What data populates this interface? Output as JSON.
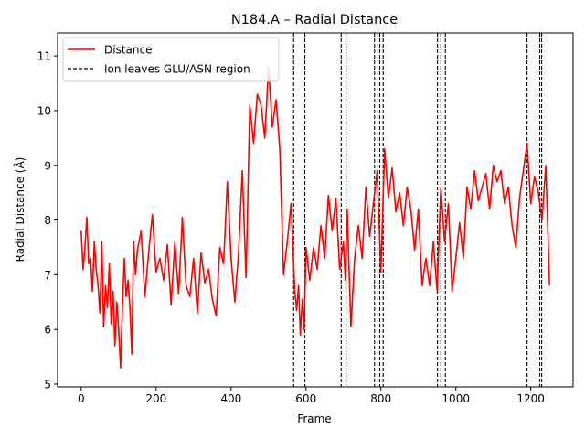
{
  "chart_data": {
    "type": "line",
    "title": "N184.A – Radial Distance",
    "xlabel": "Frame",
    "ylabel": "Radial Distance (Å)",
    "xlim": [
      -63,
      1313
    ],
    "ylim": [
      4.95,
      11.42
    ],
    "xticks": [
      0,
      200,
      400,
      600,
      800,
      1000,
      1200
    ],
    "xtick_labels": [
      "0",
      "200",
      "400",
      "600",
      "800",
      "1000",
      "1200"
    ],
    "yticks": [
      5,
      6,
      7,
      8,
      9,
      10,
      11
    ],
    "ytick_labels": [
      "5",
      "6",
      "7",
      "8",
      "9",
      "10",
      "11"
    ],
    "legend_position": "top-left",
    "grid": false,
    "series": [
      {
        "name": "Distance",
        "color": "#ff0000",
        "style": "solid",
        "x": [
          0,
          5,
          10,
          15,
          20,
          25,
          30,
          35,
          40,
          45,
          50,
          55,
          60,
          65,
          70,
          75,
          80,
          85,
          90,
          95,
          100,
          105,
          110,
          115,
          120,
          125,
          130,
          135,
          140,
          145,
          150,
          160,
          170,
          180,
          190,
          200,
          210,
          220,
          230,
          240,
          250,
          260,
          270,
          280,
          290,
          300,
          310,
          320,
          330,
          340,
          350,
          360,
          370,
          380,
          390,
          400,
          410,
          420,
          430,
          440,
          450,
          460,
          470,
          480,
          490,
          500,
          510,
          520,
          530,
          540,
          550,
          560,
          570,
          575,
          580,
          585,
          590,
          595,
          600,
          610,
          620,
          630,
          640,
          650,
          660,
          670,
          680,
          690,
          700,
          705,
          710,
          720,
          730,
          740,
          750,
          760,
          770,
          780,
          790,
          800,
          810,
          820,
          830,
          840,
          850,
          860,
          870,
          880,
          890,
          900,
          910,
          920,
          930,
          940,
          950,
          960,
          970,
          980,
          990,
          1000,
          1010,
          1020,
          1030,
          1040,
          1050,
          1060,
          1070,
          1080,
          1090,
          1100,
          1110,
          1120,
          1130,
          1140,
          1150,
          1160,
          1170,
          1180,
          1190,
          1200,
          1210,
          1220,
          1230,
          1240,
          1250
        ],
        "values": [
          7.8,
          7.1,
          7.5,
          8.05,
          7.2,
          7.3,
          6.7,
          7.6,
          7.1,
          6.8,
          6.3,
          7.6,
          6.05,
          6.8,
          6.4,
          7.2,
          6.1,
          6.7,
          5.7,
          6.5,
          6.0,
          5.3,
          6.4,
          7.3,
          6.6,
          6.9,
          6.4,
          5.55,
          7.6,
          7.0,
          7.45,
          7.8,
          6.6,
          7.4,
          8.1,
          7.05,
          7.3,
          6.9,
          7.55,
          6.45,
          7.6,
          6.65,
          8.05,
          6.8,
          6.6,
          7.3,
          6.3,
          7.4,
          6.85,
          7.1,
          6.55,
          6.25,
          7.5,
          7.2,
          8.7,
          7.3,
          6.5,
          7.4,
          8.9,
          6.95,
          10.1,
          9.4,
          10.3,
          10.1,
          9.5,
          10.8,
          9.7,
          10.2,
          9.3,
          7.0,
          7.6,
          8.3,
          6.7,
          6.35,
          6.8,
          5.9,
          6.55,
          6.0,
          7.5,
          6.9,
          7.5,
          7.1,
          7.9,
          7.3,
          8.45,
          7.8,
          8.4,
          7.1,
          7.6,
          6.9,
          8.2,
          6.05,
          7.3,
          7.9,
          7.3,
          8.6,
          7.7,
          8.3,
          8.9,
          7.05,
          9.3,
          8.4,
          8.95,
          8.15,
          8.5,
          7.9,
          8.6,
          8.2,
          7.45,
          8.2,
          6.8,
          7.3,
          6.8,
          7.6,
          6.7,
          8.6,
          7.6,
          8.3,
          6.7,
          7.3,
          7.95,
          7.3,
          8.6,
          8.2,
          8.9,
          8.35,
          8.6,
          8.85,
          8.2,
          9.0,
          8.7,
          8.9,
          8.3,
          8.6,
          7.9,
          7.5,
          8.4,
          8.9,
          9.4,
          8.3,
          8.8,
          8.5,
          8.0,
          9.0,
          6.8
        ]
      },
      {
        "name": "Ion leaves GLU/ASN region",
        "color": "#000000",
        "style": "dashed",
        "vlines": [
          567,
          597,
          694,
          707,
          783,
          792,
          797,
          806,
          951,
          960,
          972,
          1190,
          1224,
          1229
        ]
      }
    ]
  }
}
